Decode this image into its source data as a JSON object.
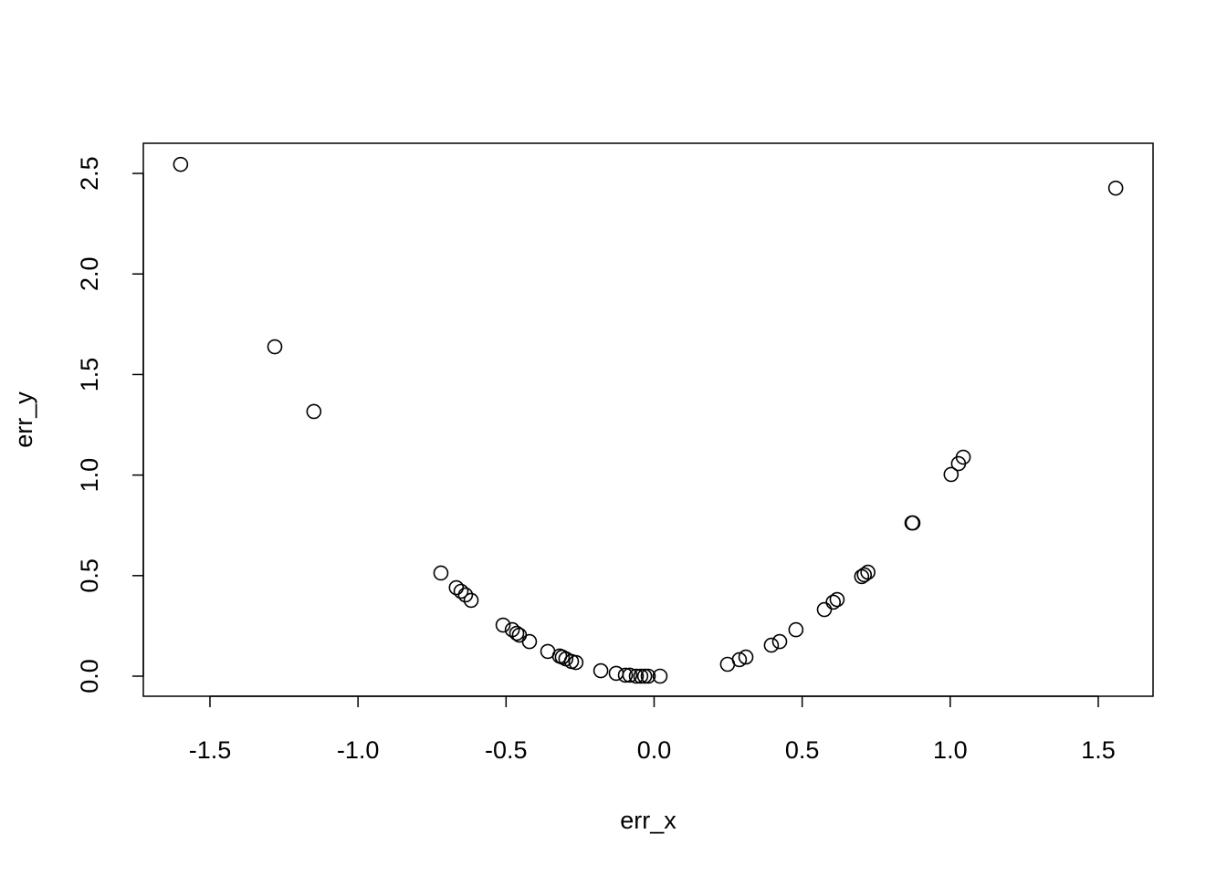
{
  "chart_data": {
    "type": "scatter",
    "xlabel": "err_x",
    "ylabel": "err_y",
    "x": [
      -1.599,
      -1.281,
      -1.149,
      -0.72,
      -0.668,
      -0.652,
      -0.637,
      -0.618,
      -0.51,
      -0.479,
      -0.464,
      -0.455,
      -0.421,
      -0.359,
      -0.319,
      -0.31,
      -0.298,
      -0.279,
      -0.264,
      -0.18,
      -0.128,
      -0.097,
      -0.082,
      -0.06,
      -0.045,
      -0.032,
      -0.02,
      0.02,
      0.248,
      0.288,
      0.31,
      0.396,
      0.424,
      0.479,
      0.575,
      0.605,
      0.618,
      0.701,
      0.71,
      0.722,
      0.871,
      0.874,
      1.003,
      1.028,
      1.044,
      1.559
    ],
    "values": [
      2.545,
      1.638,
      1.316,
      0.513,
      0.44,
      0.422,
      0.404,
      0.377,
      0.254,
      0.231,
      0.213,
      0.204,
      0.172,
      0.123,
      0.1,
      0.095,
      0.086,
      0.073,
      0.068,
      0.027,
      0.014,
      0.005,
      0.005,
      0.0,
      0.0,
      0.0,
      0.0,
      0.0,
      0.059,
      0.082,
      0.095,
      0.154,
      0.172,
      0.231,
      0.331,
      0.368,
      0.381,
      0.495,
      0.504,
      0.517,
      0.762,
      0.762,
      1.003,
      1.057,
      1.089,
      2.427
    ],
    "color": "#000000",
    "xlim": [
      -1.725,
      1.685
    ],
    "ylim": [
      -0.0998,
      2.65
    ],
    "xticks": [
      -1.5,
      {
        "value": -1,
        "label": "-1.0"
      },
      -0.5,
      {
        "value": 0,
        "label": "0.0"
      },
      0.5,
      {
        "value": 1,
        "label": "1.0"
      },
      1.5
    ],
    "yticks": [
      {
        "value": 0,
        "label": "0.0"
      },
      0.5,
      {
        "value": 1,
        "label": "1.0"
      },
      1.5,
      {
        "value": 2,
        "label": "2.0"
      },
      2.5
    ],
    "grid": false
  }
}
